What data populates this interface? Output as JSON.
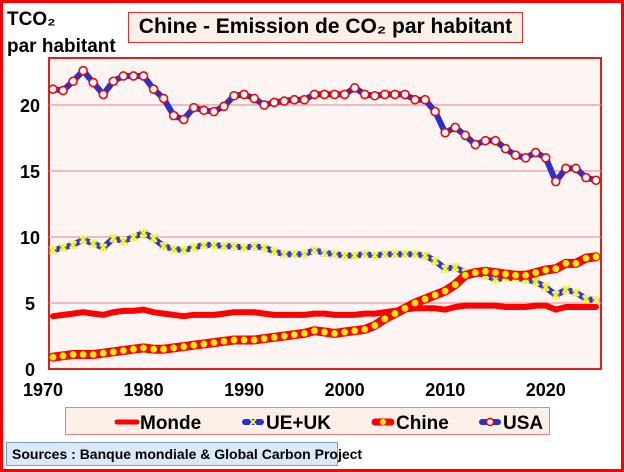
{
  "colors": {
    "frame": "#ff0000",
    "plot_bg": "#fdf5f3",
    "grid": "#e59a9a",
    "monde": "#ff0000",
    "ue_uk_line": "#2a2fd0",
    "ue_uk_marker": "#ffff33",
    "chine_line": "#ff0000",
    "chine_marker": "#ffee00",
    "usa_line": "#2a2fd0",
    "usa_marker": "#ffffff",
    "usa_marker_edge": "#ff0000"
  },
  "source": "Sources : Banque mondiale & Global Carbon Project",
  "chart_data": {
    "type": "line",
    "title": "Chine - Emission de CO₂ par habitant",
    "ylabel_line1": "TCO₂",
    "ylabel_line2": "par habitant",
    "xlabel": "",
    "xlim": [
      1970,
      2024
    ],
    "ylim": [
      0,
      23
    ],
    "yticks": [
      0,
      5,
      10,
      15,
      20
    ],
    "ytick_labels": [
      "0",
      "5",
      "10",
      "15",
      "20"
    ],
    "xticks": [
      1970,
      1980,
      1990,
      2000,
      2010,
      2020
    ],
    "xtick_labels": [
      "1970",
      "1980",
      "1990",
      "2000",
      "2010",
      "2020"
    ],
    "grid": true,
    "legend_position": "bottom",
    "x": [
      1970,
      1971,
      1972,
      1973,
      1974,
      1975,
      1976,
      1977,
      1978,
      1979,
      1980,
      1981,
      1982,
      1983,
      1984,
      1985,
      1986,
      1987,
      1988,
      1989,
      1990,
      1991,
      1992,
      1993,
      1994,
      1995,
      1996,
      1997,
      1998,
      1999,
      2000,
      2001,
      2002,
      2003,
      2004,
      2005,
      2006,
      2007,
      2008,
      2009,
      2010,
      2011,
      2012,
      2013,
      2014,
      2015,
      2016,
      2017,
      2018,
      2019,
      2020,
      2021,
      2022,
      2023,
      2024
    ],
    "series": [
      {
        "name": "Monde",
        "marker": "none",
        "values": [
          4.0,
          4.1,
          4.2,
          4.3,
          4.2,
          4.1,
          4.3,
          4.4,
          4.4,
          4.5,
          4.3,
          4.2,
          4.1,
          4.0,
          4.1,
          4.1,
          4.1,
          4.2,
          4.3,
          4.3,
          4.3,
          4.2,
          4.1,
          4.1,
          4.1,
          4.1,
          4.2,
          4.2,
          4.1,
          4.1,
          4.1,
          4.2,
          4.2,
          4.3,
          4.4,
          4.5,
          4.6,
          4.6,
          4.6,
          4.5,
          4.7,
          4.8,
          4.8,
          4.8,
          4.8,
          4.7,
          4.7,
          4.7,
          4.8,
          4.8,
          4.5,
          4.7,
          4.7,
          4.7,
          4.7
        ]
      },
      {
        "name": "UE+UK",
        "marker": "x",
        "values": [
          9.0,
          9.2,
          9.4,
          9.8,
          9.5,
          9.2,
          9.9,
          9.7,
          10.0,
          10.3,
          9.9,
          9.3,
          9.1,
          9.0,
          9.2,
          9.4,
          9.4,
          9.3,
          9.3,
          9.2,
          9.3,
          9.2,
          8.9,
          8.7,
          8.7,
          8.7,
          9.0,
          8.8,
          8.7,
          8.6,
          8.6,
          8.7,
          8.6,
          8.7,
          8.7,
          8.7,
          8.7,
          8.6,
          8.2,
          7.6,
          7.7,
          7.3,
          7.3,
          7.1,
          6.8,
          6.9,
          6.9,
          6.8,
          6.6,
          6.2,
          5.6,
          6.0,
          5.8,
          5.3,
          5.2
        ]
      },
      {
        "name": "Chine",
        "marker": "circle",
        "values": [
          0.9,
          1.0,
          1.1,
          1.1,
          1.1,
          1.2,
          1.3,
          1.4,
          1.5,
          1.6,
          1.5,
          1.5,
          1.6,
          1.7,
          1.8,
          1.9,
          2.0,
          2.1,
          2.2,
          2.2,
          2.2,
          2.3,
          2.4,
          2.5,
          2.6,
          2.7,
          2.9,
          2.8,
          2.7,
          2.8,
          2.9,
          3.0,
          3.3,
          3.8,
          4.2,
          4.6,
          5.0,
          5.3,
          5.6,
          5.9,
          6.4,
          7.1,
          7.3,
          7.4,
          7.3,
          7.2,
          7.1,
          7.1,
          7.3,
          7.5,
          7.6,
          8.0,
          8.0,
          8.4,
          8.5
        ]
      },
      {
        "name": "USA",
        "marker": "open-circle",
        "values": [
          21.2,
          21.1,
          21.8,
          22.6,
          21.7,
          20.8,
          21.8,
          22.2,
          22.2,
          22.2,
          21.2,
          20.5,
          19.2,
          18.9,
          19.8,
          19.6,
          19.5,
          19.9,
          20.7,
          20.8,
          20.5,
          20.0,
          20.2,
          20.3,
          20.4,
          20.4,
          20.8,
          20.8,
          20.8,
          20.8,
          21.3,
          20.8,
          20.7,
          20.8,
          20.8,
          20.8,
          20.4,
          20.4,
          19.5,
          17.9,
          18.3,
          17.7,
          17.0,
          17.3,
          17.3,
          16.7,
          16.2,
          16.0,
          16.4,
          16.0,
          14.2,
          15.2,
          15.2,
          14.5,
          14.3
        ]
      }
    ]
  }
}
